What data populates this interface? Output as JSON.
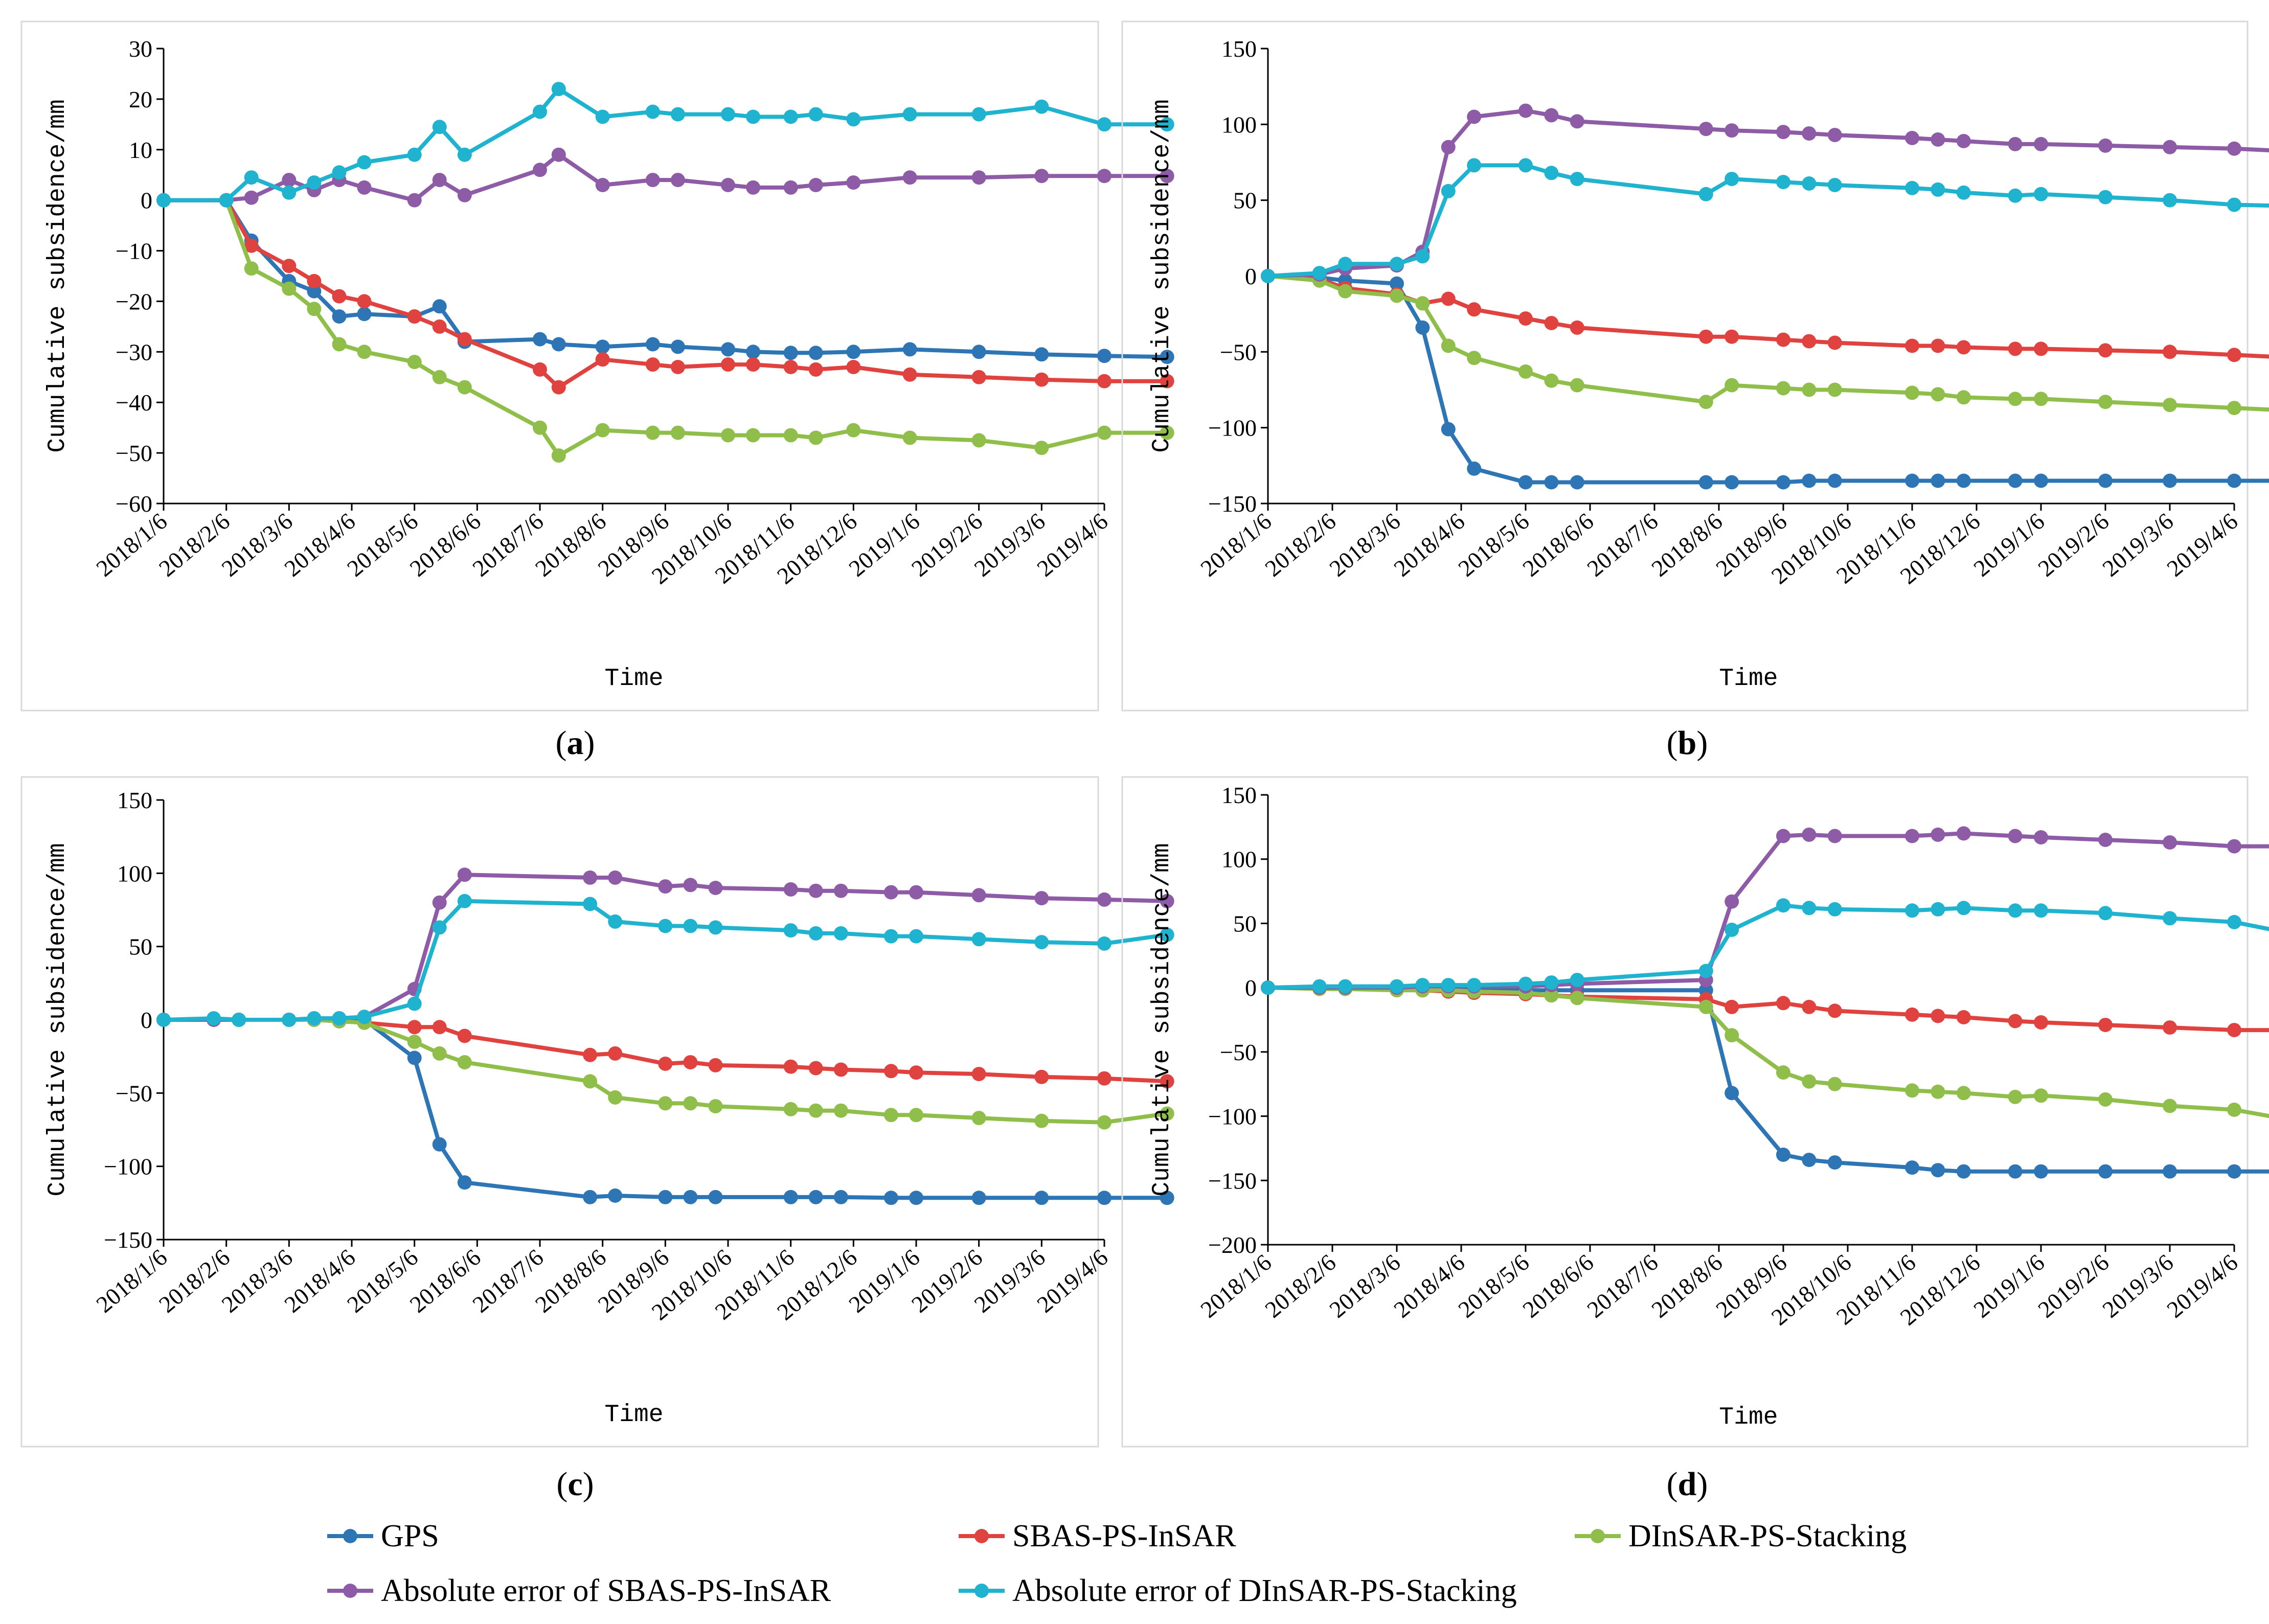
{
  "figure": {
    "legend": [
      {
        "key": "gps",
        "label": "GPS",
        "color": "#2e75b6"
      },
      {
        "key": "sbas",
        "label": "SBAS-PS-InSAR",
        "color": "#e0433f"
      },
      {
        "key": "dinsar",
        "label": "DInSAR-PS-Stacking",
        "color": "#8fbf4a"
      },
      {
        "key": "abs_sbas",
        "label": "Absolute error of SBAS-PS-InSAR",
        "color": "#8e5ba6"
      },
      {
        "key": "abs_dinsar",
        "label": "Absolute error of DInSAR-PS-Stacking",
        "color": "#1fb3cf"
      }
    ]
  },
  "chart_data": [
    {
      "panel": "(a)",
      "panel_letter": "a",
      "type": "line",
      "xlabel": "Time",
      "ylabel": "Cumulative subsidence/mm",
      "ylim": [
        -60,
        30
      ],
      "yticks": [
        30,
        20,
        10,
        0,
        -10,
        -20,
        -30,
        -40,
        -50,
        -60
      ],
      "xticks": [
        "2018/1/6",
        "2018/2/6",
        "2018/3/6",
        "2018/4/6",
        "2018/5/6",
        "2018/6/6",
        "2018/7/6",
        "2018/8/6",
        "2018/9/6",
        "2018/10/6",
        "2018/11/6",
        "2018/12/6",
        "2019/1/6",
        "2019/2/6",
        "2019/3/6",
        "2019/4/6"
      ],
      "x": [
        0,
        1,
        1.4,
        2,
        2.4,
        2.8,
        3.2,
        4,
        4.4,
        4.8,
        6,
        6.3,
        7,
        7.8,
        8.2,
        9,
        9.4,
        10,
        10.4,
        11,
        11.9,
        13,
        14,
        15,
        16
      ],
      "series": [
        {
          "key": "gps",
          "name": "GPS",
          "values": [
            0,
            0,
            -8,
            -16,
            -18,
            -23,
            -22.5,
            -23,
            -21,
            -28,
            -27.5,
            -28.5,
            -29,
            -28.5,
            -29,
            -29.5,
            -30,
            -30.2,
            -30.2,
            -30,
            -29.5,
            -30,
            -30.5,
            -30.8,
            -31
          ]
        },
        {
          "key": "sbas",
          "name": "SBAS-PS-InSAR",
          "values": [
            0,
            0,
            -9,
            -13,
            -16,
            -19,
            -20,
            -23,
            -25,
            -27.5,
            -33.5,
            -37,
            -31.5,
            -32.5,
            -33,
            -32.5,
            -32.5,
            -33,
            -33.5,
            -33,
            -34.5,
            -35,
            -35.5,
            -35.8,
            -35.8
          ]
        },
        {
          "key": "dinsar",
          "name": "DInSAR-PS-Stacking",
          "values": [
            0,
            0,
            -13.5,
            -17.5,
            -21.5,
            -28.5,
            -30,
            -32,
            -35,
            -37,
            -45,
            -50.5,
            -45.5,
            -46,
            -46,
            -46.5,
            -46.5,
            -46.5,
            -47,
            -45.5,
            -47,
            -47.5,
            -49,
            -46,
            -46
          ]
        },
        {
          "key": "abs_sbas",
          "name": "Absolute error of SBAS-PS-InSAR",
          "values": [
            0,
            0,
            0.5,
            4,
            2,
            4,
            2.5,
            0,
            4,
            1,
            6,
            9,
            3,
            4,
            4,
            3,
            2.5,
            2.5,
            3,
            3.5,
            4.5,
            4.5,
            4.8,
            4.8,
            4.8
          ]
        },
        {
          "key": "abs_dinsar",
          "name": "Absolute error of DInSAR-PS-Stacking",
          "values": [
            0,
            0,
            4.5,
            1.5,
            3.5,
            5.5,
            7.5,
            9,
            14.5,
            9,
            17.5,
            22,
            16.5,
            17.5,
            17,
            17,
            16.5,
            16.5,
            17,
            16,
            17,
            17,
            18.5,
            15,
            15
          ]
        }
      ]
    },
    {
      "panel": "(b)",
      "panel_letter": "b",
      "type": "line",
      "xlabel": "Time",
      "ylabel": "Cumulative subsidence/mm",
      "ylim": [
        -150,
        150
      ],
      "yticks": [
        150,
        100,
        50,
        0,
        -50,
        -100,
        -150
      ],
      "xticks": [
        "2018/1/6",
        "2018/2/6",
        "2018/3/6",
        "2018/4/6",
        "2018/5/6",
        "2018/6/6",
        "2018/7/6",
        "2018/8/6",
        "2018/9/6",
        "2018/10/6",
        "2018/11/6",
        "2018/12/6",
        "2019/1/6",
        "2019/2/6",
        "2019/3/6",
        "2019/4/6"
      ],
      "x": [
        0,
        0.8,
        1.2,
        2,
        2.4,
        2.8,
        3.2,
        4,
        4.4,
        4.8,
        6.8,
        7.2,
        8,
        8.4,
        8.8,
        10,
        10.4,
        10.8,
        11.6,
        12,
        13,
        14,
        15,
        16
      ],
      "series": [
        {
          "key": "gps",
          "name": "GPS",
          "values": [
            0,
            -1,
            -3,
            -5,
            -34,
            -101,
            -127,
            -136,
            -136,
            -136,
            -136,
            -136,
            -136,
            -135,
            -135,
            -135,
            -135,
            -135,
            -135,
            -135,
            -135,
            -135,
            -135,
            -135
          ]
        },
        {
          "key": "sbas",
          "name": "SBAS-PS-InSAR",
          "values": [
            0,
            -2,
            -8,
            -12,
            -18,
            -15,
            -22,
            -28,
            -31,
            -34,
            -40,
            -40,
            -42,
            -43,
            -44,
            -46,
            -46,
            -47,
            -48,
            -48,
            -49,
            -50,
            -52,
            -54
          ]
        },
        {
          "key": "dinsar",
          "name": "DInSAR-PS-Stacking",
          "values": [
            0,
            -3,
            -10,
            -13,
            -18,
            -46,
            -54,
            -63,
            -69,
            -72,
            -83,
            -72,
            -74,
            -75,
            -75,
            -77,
            -78,
            -80,
            -81,
            -81,
            -83,
            -85,
            -87,
            -89
          ]
        },
        {
          "key": "abs_sbas",
          "name": "Absolute error of SBAS-PS-InSAR",
          "values": [
            0,
            1,
            5,
            7,
            16,
            85,
            105,
            109,
            106,
            102,
            97,
            96,
            95,
            94,
            93,
            91,
            90,
            89,
            87,
            87,
            86,
            85,
            84,
            82
          ]
        },
        {
          "key": "abs_dinsar",
          "name": "Absolute error of DInSAR-PS-Stacking",
          "values": [
            0,
            2,
            8,
            8,
            13,
            56,
            73,
            73,
            68,
            64,
            54,
            64,
            62,
            61,
            60,
            58,
            57,
            55,
            53,
            54,
            52,
            50,
            47,
            46
          ]
        }
      ]
    },
    {
      "panel": "(c)",
      "panel_letter": "c",
      "type": "line",
      "xlabel": "Time",
      "ylabel": "Cumulative subsidence/mm",
      "ylim": [
        -150,
        150
      ],
      "yticks": [
        150,
        100,
        50,
        0,
        -50,
        -100,
        -150
      ],
      "xticks": [
        "2018/1/6",
        "2018/2/6",
        "2018/3/6",
        "2018/4/6",
        "2018/5/6",
        "2018/6/6",
        "2018/7/6",
        "2018/8/6",
        "2018/9/6",
        "2018/10/6",
        "2018/11/6",
        "2018/12/6",
        "2019/1/6",
        "2019/2/6",
        "2019/3/6",
        "2019/4/6"
      ],
      "x": [
        0,
        0.8,
        1.2,
        2,
        2.4,
        2.8,
        3.2,
        4,
        4.4,
        4.8,
        6.8,
        7.2,
        8,
        8.4,
        8.8,
        10,
        10.4,
        10.8,
        11.6,
        12,
        13,
        14,
        15,
        16
      ],
      "series": [
        {
          "key": "gps",
          "name": "GPS",
          "values": [
            0,
            0,
            0,
            0,
            0,
            0,
            0,
            -26,
            -85,
            -111,
            -121,
            -120,
            -121,
            -121,
            -121,
            -121,
            -121,
            -121,
            -121.5,
            -121.5,
            -121.5,
            -121.5,
            -121.5,
            -121.5
          ]
        },
        {
          "key": "sbas",
          "name": "SBAS-PS-InSAR",
          "values": [
            0,
            0,
            0,
            0,
            0,
            -1,
            -2,
            -5,
            -5,
            -11,
            -24,
            -23,
            -30,
            -29,
            -31,
            -32,
            -33,
            -34,
            -35,
            -36,
            -37,
            -39,
            -40,
            -42
          ]
        },
        {
          "key": "dinsar",
          "name": "DInSAR-PS-Stacking",
          "values": [
            0,
            0,
            0,
            0,
            0,
            -1,
            -2,
            -15,
            -23,
            -29,
            -42,
            -53,
            -57,
            -57,
            -59,
            -61,
            -62,
            -62,
            -65,
            -65,
            -67,
            -69,
            -70,
            -64
          ]
        },
        {
          "key": "abs_sbas",
          "name": "Absolute error of SBAS-PS-InSAR",
          "values": [
            0,
            0,
            0,
            0,
            1,
            1,
            2,
            21,
            80,
            99,
            97,
            97,
            91,
            92,
            90,
            89,
            88,
            88,
            87,
            87,
            85,
            83,
            82,
            81
          ]
        },
        {
          "key": "abs_dinsar",
          "name": "Absolute error of DInSAR-PS-Stacking",
          "values": [
            0,
            1,
            0,
            0,
            1,
            1,
            2,
            11,
            63,
            81,
            79,
            67,
            64,
            64,
            63,
            61,
            59,
            59,
            57,
            57,
            55,
            53,
            52,
            58
          ]
        }
      ]
    },
    {
      "panel": "(d)",
      "panel_letter": "d",
      "type": "line",
      "xlabel": "Time",
      "ylabel": "Cumulative subsidence/mm",
      "ylim": [
        -200,
        150
      ],
      "yticks": [
        150,
        100,
        50,
        0,
        -50,
        -100,
        -150,
        -200
      ],
      "xticks": [
        "2018/1/6",
        "2018/2/6",
        "2018/3/6",
        "2018/4/6",
        "2018/5/6",
        "2018/6/6",
        "2018/7/6",
        "2018/8/6",
        "2018/9/6",
        "2018/10/6",
        "2018/11/6",
        "2018/12/6",
        "2019/1/6",
        "2019/2/6",
        "2019/3/6",
        "2019/4/6"
      ],
      "x": [
        0,
        0.8,
        1.2,
        2,
        2.4,
        2.8,
        3.2,
        4,
        4.4,
        4.8,
        6.8,
        7.2,
        8,
        8.4,
        8.8,
        10,
        10.4,
        10.8,
        11.6,
        12,
        13,
        14,
        15,
        16
      ],
      "series": [
        {
          "key": "gps",
          "name": "GPS",
          "values": [
            0,
            0,
            0,
            -1,
            -2,
            -2,
            -2,
            -2,
            -2,
            -2,
            -2,
            -82,
            -130,
            -134,
            -136,
            -140,
            -142,
            -143,
            -143,
            -143,
            -143,
            -143,
            -143,
            -143
          ]
        },
        {
          "key": "sbas",
          "name": "SBAS-PS-InSAR",
          "values": [
            0,
            0,
            0,
            -1,
            -2,
            -3,
            -4,
            -5,
            -6,
            -7,
            -9,
            -15,
            -12,
            -15,
            -18,
            -21,
            -22,
            -23,
            -26,
            -27,
            -29,
            -31,
            -33,
            -33
          ]
        },
        {
          "key": "dinsar",
          "name": "DInSAR-PS-Stacking",
          "values": [
            0,
            -1,
            -1,
            -2,
            -2,
            -2,
            -3,
            -4,
            -6,
            -8,
            -15,
            -37,
            -66,
            -73,
            -75,
            -80,
            -81,
            -82,
            -85,
            -84,
            -87,
            -92,
            -95,
            -104
          ]
        },
        {
          "key": "abs_sbas",
          "name": "Absolute error of SBAS-PS-InSAR",
          "values": [
            0,
            0,
            0,
            0,
            1,
            1,
            1,
            1,
            2,
            3,
            6,
            67,
            118,
            119,
            118,
            118,
            119,
            120,
            118,
            117,
            115,
            113,
            110,
            110
          ]
        },
        {
          "key": "abs_dinsar",
          "name": "Absolute error of DInSAR-PS-Stacking",
          "values": [
            0,
            1,
            1,
            1,
            2,
            2,
            2,
            3,
            4,
            6,
            13,
            45,
            64,
            62,
            61,
            60,
            61,
            62,
            60,
            60,
            58,
            54,
            51,
            41
          ]
        }
      ]
    }
  ]
}
